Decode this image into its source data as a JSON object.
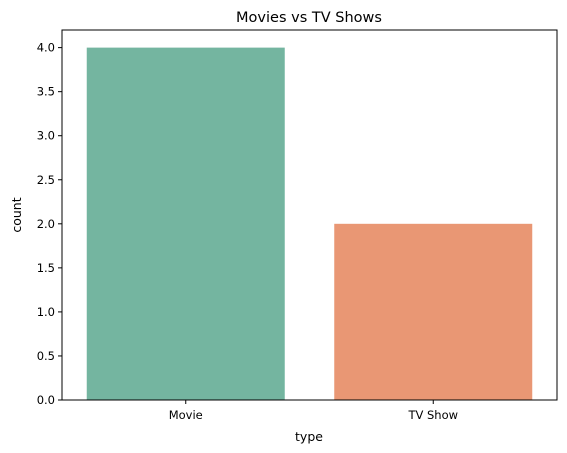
{
  "chart_data": {
    "type": "bar",
    "title": "Movies vs TV Shows",
    "xlabel": "type",
    "ylabel": "count",
    "categories": [
      "Movie",
      "TV Show"
    ],
    "values": [
      4,
      2
    ],
    "colors": [
      "#74b5a0",
      "#e99774"
    ],
    "ylim": [
      0,
      4.2
    ],
    "yticks": [
      "0.0",
      "0.5",
      "1.0",
      "1.5",
      "2.0",
      "2.5",
      "3.0",
      "3.5",
      "4.0"
    ],
    "grid": false,
    "legend": "none"
  }
}
